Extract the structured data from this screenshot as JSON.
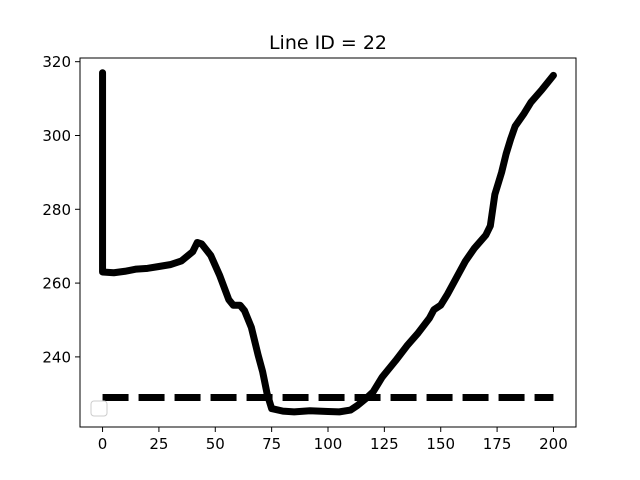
{
  "chart_data": {
    "type": "line",
    "title": "Line ID = 22",
    "xlabel": "",
    "ylabel": "",
    "xlim": [
      -10,
      210
    ],
    "ylim": [
      221,
      321
    ],
    "x_ticks": [
      0,
      25,
      50,
      75,
      100,
      125,
      150,
      175,
      200
    ],
    "y_ticks": [
      240,
      260,
      280,
      300,
      320
    ],
    "grid": false,
    "legend": "bottom-left, empty",
    "series": [
      {
        "style": "solid",
        "color": "#000000",
        "points": [
          [
            0,
            317
          ],
          [
            0,
            263
          ],
          [
            5,
            262.8
          ],
          [
            10,
            263.2
          ],
          [
            15,
            263.8
          ],
          [
            20,
            264
          ],
          [
            25,
            264.5
          ],
          [
            30,
            265
          ],
          [
            35,
            266
          ],
          [
            40,
            268.5
          ],
          [
            42,
            271
          ],
          [
            44,
            270.6
          ],
          [
            48,
            267.5
          ],
          [
            52,
            262
          ],
          [
            56,
            255.5
          ],
          [
            58,
            254
          ],
          [
            61,
            254
          ],
          [
            63,
            252.5
          ],
          [
            66,
            248
          ],
          [
            69,
            240.5
          ],
          [
            71,
            236
          ],
          [
            73,
            230
          ],
          [
            75,
            226
          ],
          [
            80,
            225.3
          ],
          [
            85,
            225.1
          ],
          [
            92,
            225.4
          ],
          [
            100,
            225.2
          ],
          [
            105,
            225.1
          ],
          [
            110,
            225.6
          ],
          [
            113,
            226.8
          ],
          [
            117,
            228.8
          ],
          [
            120,
            230.5
          ],
          [
            124,
            234.5
          ],
          [
            130,
            239
          ],
          [
            135,
            243
          ],
          [
            140,
            246.5
          ],
          [
            145,
            250.5
          ],
          [
            147,
            252.8
          ],
          [
            150,
            254
          ],
          [
            153,
            257
          ],
          [
            157,
            261.5
          ],
          [
            161,
            266
          ],
          [
            165,
            269.5
          ],
          [
            170,
            273
          ],
          [
            172,
            275.5
          ],
          [
            174,
            284
          ],
          [
            177,
            290
          ],
          [
            179,
            295
          ],
          [
            181,
            299
          ],
          [
            183,
            302.5
          ],
          [
            187,
            306
          ],
          [
            190,
            309
          ],
          [
            195,
            312.5
          ],
          [
            200,
            316.3
          ]
        ]
      },
      {
        "style": "dashed",
        "color": "#000000",
        "points": [
          [
            0,
            229
          ],
          [
            200,
            229
          ]
        ]
      }
    ]
  }
}
